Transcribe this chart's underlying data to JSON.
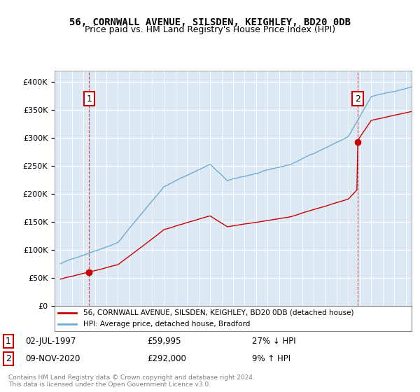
{
  "title1": "56, CORNWALL AVENUE, SILSDEN, KEIGHLEY, BD20 0DB",
  "title2": "Price paid vs. HM Land Registry's House Price Index (HPI)",
  "legend_line1": "56, CORNWALL AVENUE, SILSDEN, KEIGHLEY, BD20 0DB (detached house)",
  "legend_line2": "HPI: Average price, detached house, Bradford",
  "annotation1_label": "1",
  "annotation1_date": "02-JUL-1997",
  "annotation1_price": "£59,995",
  "annotation1_hpi": "27% ↓ HPI",
  "annotation2_label": "2",
  "annotation2_date": "09-NOV-2020",
  "annotation2_price": "£292,000",
  "annotation2_hpi": "9% ↑ HPI",
  "footer": "Contains HM Land Registry data © Crown copyright and database right 2024.\nThis data is licensed under the Open Government Licence v3.0.",
  "sale1_year": 1997.5,
  "sale1_price": 59995,
  "sale2_year": 2020.83,
  "sale2_price": 292000,
  "hpi_color": "#6dadd1",
  "price_color": "#cc0000",
  "bg_color": "#dce9f5",
  "plot_bg": "#dce9f5",
  "ylim": [
    0,
    420000
  ],
  "xlim_start": 1994.5,
  "xlim_end": 2025.5
}
